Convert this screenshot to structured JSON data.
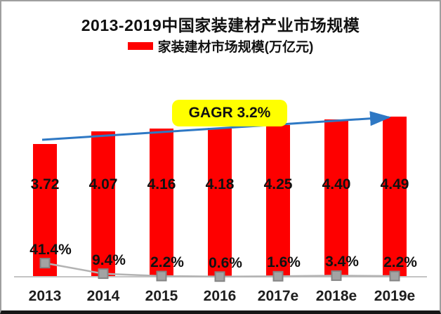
{
  "title": "2013-2019中国家装建材产业市场规模",
  "legend": {
    "label": "家装建材市场规模(万亿元)",
    "swatch_color": "#fe0000"
  },
  "annotation": {
    "label": "GAGR 3.2%",
    "bg_color": "#ffff00"
  },
  "chart_data": {
    "type": "bar",
    "title": "2013-2019中国家装建材产业市场规模",
    "categories": [
      "2013",
      "2014",
      "2015",
      "2016",
      "2017e",
      "2018e",
      "2019e"
    ],
    "series": [
      {
        "name": "家装建材市场规模(万亿元)",
        "type": "bar",
        "color": "#fe0000",
        "values": [
          3.72,
          4.07,
          4.16,
          4.18,
          4.25,
          4.4,
          4.49
        ],
        "labels": [
          "3.72",
          "4.07",
          "4.16",
          "4.18",
          "4.25",
          "4.40",
          "4.49"
        ]
      },
      {
        "name": "",
        "type": "line",
        "color": "#b3b3b3",
        "marker": "square",
        "marker_color": "#a3a3a3",
        "marker_border_color": "#858585",
        "values_pct": [
          41.4,
          9.4,
          2.2,
          0.6,
          1.6,
          3.4,
          2.2
        ],
        "labels": [
          "41.4%",
          "9.4%",
          "2.2%",
          "0.6%",
          "1.6%",
          "3.4%",
          "2.2%"
        ]
      }
    ],
    "trend_arrow_label": "GAGR 3.2%",
    "trend_arrow_color": "#2e78c4",
    "axis_line_color": "#c4c4c4",
    "ylim": [
      0,
      5.5
    ],
    "grid": false,
    "legend_position": "top"
  }
}
